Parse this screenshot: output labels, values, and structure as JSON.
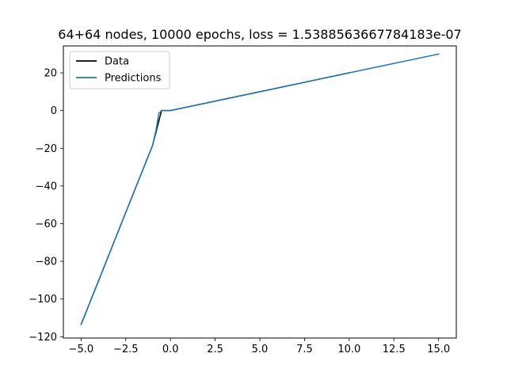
{
  "chart_data": {
    "type": "line",
    "title": "64+64 nodes, 10000 epochs, loss = 1.5388563667784183e-07",
    "xlabel": "",
    "ylabel": "",
    "xlim": [
      -5.99,
      15.99
    ],
    "ylim": [
      -120.7,
      34.3
    ],
    "xticks": [
      -5.0,
      -2.5,
      0.0,
      2.5,
      5.0,
      7.5,
      10.0,
      12.5,
      15.0
    ],
    "xtick_labels": [
      "−5.0",
      "−2.5",
      "0.0",
      "2.5",
      "5.0",
      "7.5",
      "10.0",
      "12.5",
      "15.0"
    ],
    "yticks": [
      -120,
      -100,
      -80,
      -60,
      -40,
      -20,
      0,
      20
    ],
    "ytick_labels": [
      "−120",
      "−100",
      "−80",
      "−60",
      "−40",
      "−20",
      "0",
      "20"
    ],
    "grid": false,
    "legend_position": "upper-left",
    "series": [
      {
        "name": "Data",
        "color": "#000000",
        "x": [
          -5.0,
          -4.0,
          -3.0,
          -2.0,
          -1.0,
          -0.5,
          0.0,
          2.5,
          5.0,
          7.5,
          10.0
        ],
        "y": [
          -113.5,
          -89.8,
          -66.0,
          -42.2,
          -18.5,
          0.0,
          0.0,
          5.0,
          10.0,
          15.0,
          20.0
        ]
      },
      {
        "name": "Predictions",
        "color": "#1f77b4",
        "x": [
          -5.0,
          -4.0,
          -3.0,
          -2.0,
          -1.5,
          -1.0,
          -0.8,
          -0.65,
          -0.5,
          -0.3,
          0.0,
          2.5,
          5.0,
          7.5,
          10.0,
          12.5,
          15.0
        ],
        "y": [
          -113.5,
          -89.8,
          -66.0,
          -42.2,
          -30.4,
          -18.5,
          -10.0,
          -1.5,
          0.0,
          0.0,
          0.0,
          5.0,
          10.0,
          15.0,
          20.0,
          25.0,
          30.0
        ]
      }
    ]
  }
}
